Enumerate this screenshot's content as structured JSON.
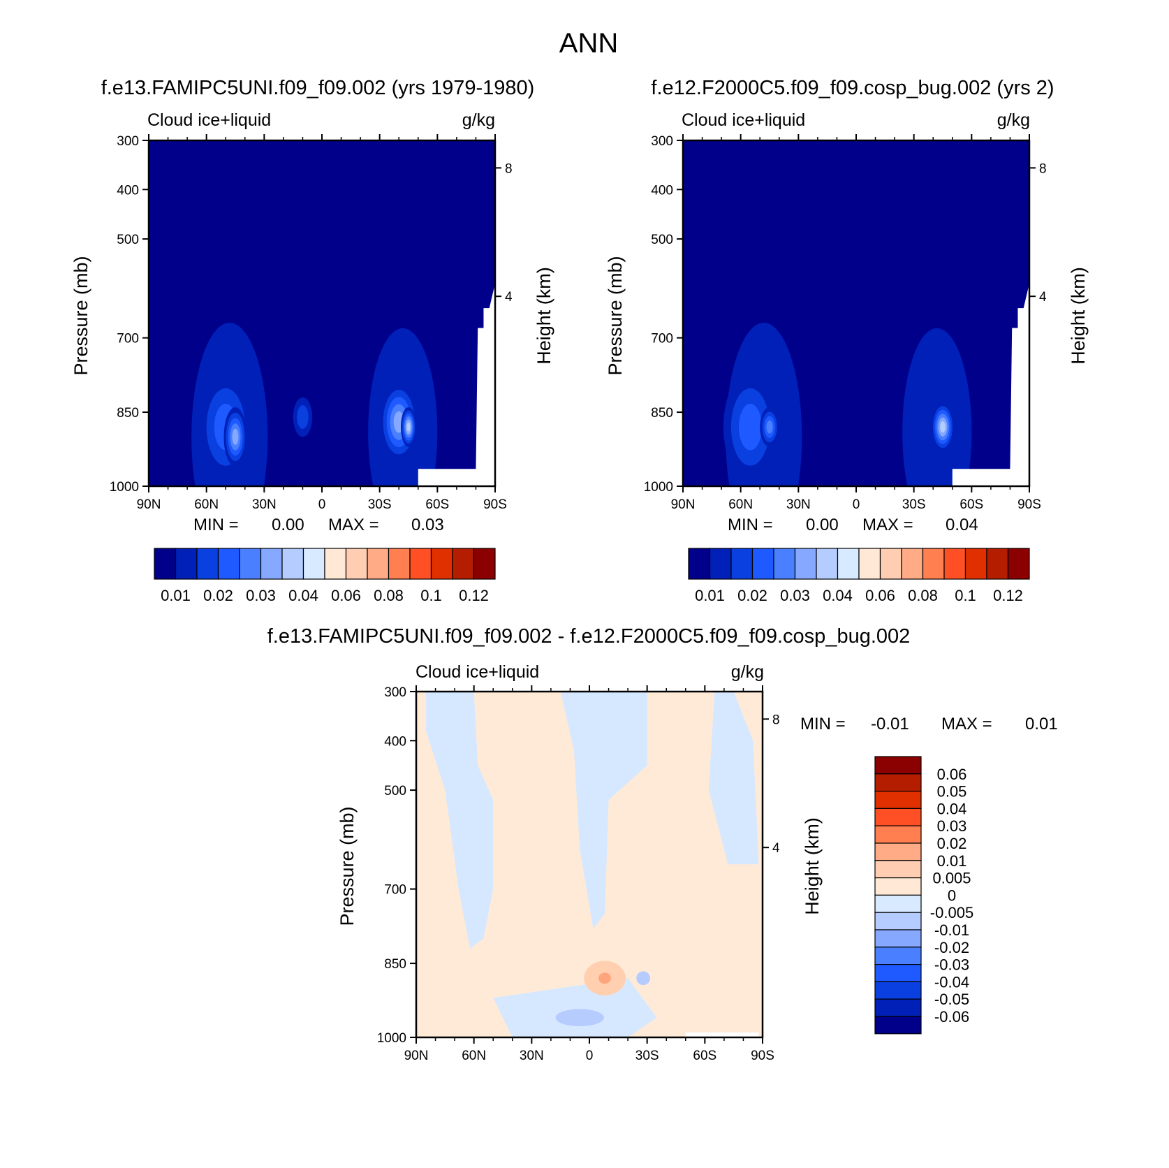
{
  "page_title": "ANN",
  "chart_data": [
    {
      "type": "contour",
      "panel": "top-left",
      "title": "f.e13.FAMIPC5UNI.f09_f09.002 (yrs 1979-1980)",
      "left_label": "Cloud ice+liquid",
      "right_label": "g/kg",
      "ylabel": "Pressure (mb)",
      "ylabel_right": "Height (km)",
      "x_ticks": [
        "90N",
        "60N",
        "30N",
        "0",
        "30S",
        "60S",
        "90S"
      ],
      "y_ticks": [
        "300",
        "400",
        "500",
        "700",
        "850",
        "1000"
      ],
      "y_ticks_right": [
        "8",
        "4"
      ],
      "min_label": "MIN =",
      "min_value": "0.00",
      "max_label": "MAX =",
      "max_value": "0.03",
      "colorbar_labels": [
        "0.01",
        "0.02",
        "0.03",
        "0.04",
        "0.06",
        "0.08",
        "0.1",
        "0.12"
      ],
      "blobs": [
        {
          "lat": 50,
          "p": 880,
          "level": 3,
          "rlat": 14,
          "rp": 110
        },
        {
          "lat": 45,
          "p": 900,
          "level": 5,
          "rlat": 6,
          "rp": 60
        },
        {
          "lat": 10,
          "p": 860,
          "level": 2,
          "rlat": 5,
          "rp": 40
        },
        {
          "lat": -40,
          "p": 870,
          "level": 5,
          "rlat": 10,
          "rp": 80
        },
        {
          "lat": -45,
          "p": 880,
          "level": 6,
          "rlat": 4,
          "rp": 40
        }
      ]
    },
    {
      "type": "contour",
      "panel": "top-right",
      "title": "f.e12.F2000C5.f09_f09.cosp_bug.002 (yrs 2)",
      "left_label": "Cloud ice+liquid",
      "right_label": "g/kg",
      "ylabel": "Pressure (mb)",
      "ylabel_right": "Height (km)",
      "x_ticks": [
        "90N",
        "60N",
        "30N",
        "0",
        "30S",
        "60S",
        "90S"
      ],
      "y_ticks": [
        "300",
        "400",
        "500",
        "700",
        "850",
        "1000"
      ],
      "y_ticks_right": [
        "8",
        "4"
      ],
      "min_label": "MIN =",
      "min_value": "0.00",
      "max_label": "MAX =",
      "max_value": "0.04",
      "colorbar_labels": [
        "0.01",
        "0.02",
        "0.03",
        "0.04",
        "0.06",
        "0.08",
        "0.1",
        "0.12"
      ],
      "blobs": [
        {
          "lat": 55,
          "p": 880,
          "level": 3,
          "rlat": 14,
          "rp": 110
        },
        {
          "lat": 45,
          "p": 880,
          "level": 4,
          "rlat": 5,
          "rp": 40
        },
        {
          "lat": -45,
          "p": 880,
          "level": 6,
          "rlat": 6,
          "rp": 50
        }
      ]
    },
    {
      "type": "contour",
      "panel": "bottom-difference",
      "title": "f.e13.FAMIPC5UNI.f09_f09.002 - f.e12.F2000C5.f09_f09.cosp_bug.002",
      "left_label": "Cloud ice+liquid",
      "right_label": "g/kg",
      "ylabel": "Pressure (mb)",
      "ylabel_right": "Height (km)",
      "x_ticks": [
        "90N",
        "60N",
        "30N",
        "0",
        "30S",
        "60S",
        "90S"
      ],
      "y_ticks": [
        "300",
        "400",
        "500",
        "700",
        "850",
        "1000"
      ],
      "y_ticks_right": [
        "8",
        "4"
      ],
      "min_label": "MIN =",
      "min_value": "-0.01",
      "max_label": "MAX =",
      "max_value": "0.01",
      "colorbar_labels": [
        "0.06",
        "0.05",
        "0.04",
        "0.03",
        "0.02",
        "0.01",
        "0.005",
        "0",
        "-0.005",
        "-0.01",
        "-0.02",
        "-0.03",
        "-0.04",
        "-0.05",
        "-0.06"
      ]
    }
  ],
  "colors": {
    "seq": [
      "#00008b",
      "#0020b8",
      "#0a3fe0",
      "#1e5aff",
      "#4a80ff",
      "#86a9ff",
      "#b4ccff",
      "#d8eaff",
      "#ffe8d6",
      "#ffcdb2",
      "#ffab86",
      "#ff7f50",
      "#ff4f24",
      "#e03000",
      "#b51d00",
      "#8b0000"
    ],
    "div_pos": "#ffead8",
    "div_neg": "#d6e8ff",
    "div_pos2": "#ffcfb0",
    "div_pos3": "#ffa57e",
    "div_neg2": "#b6ccff",
    "div_neg3": "#86a9ff"
  }
}
